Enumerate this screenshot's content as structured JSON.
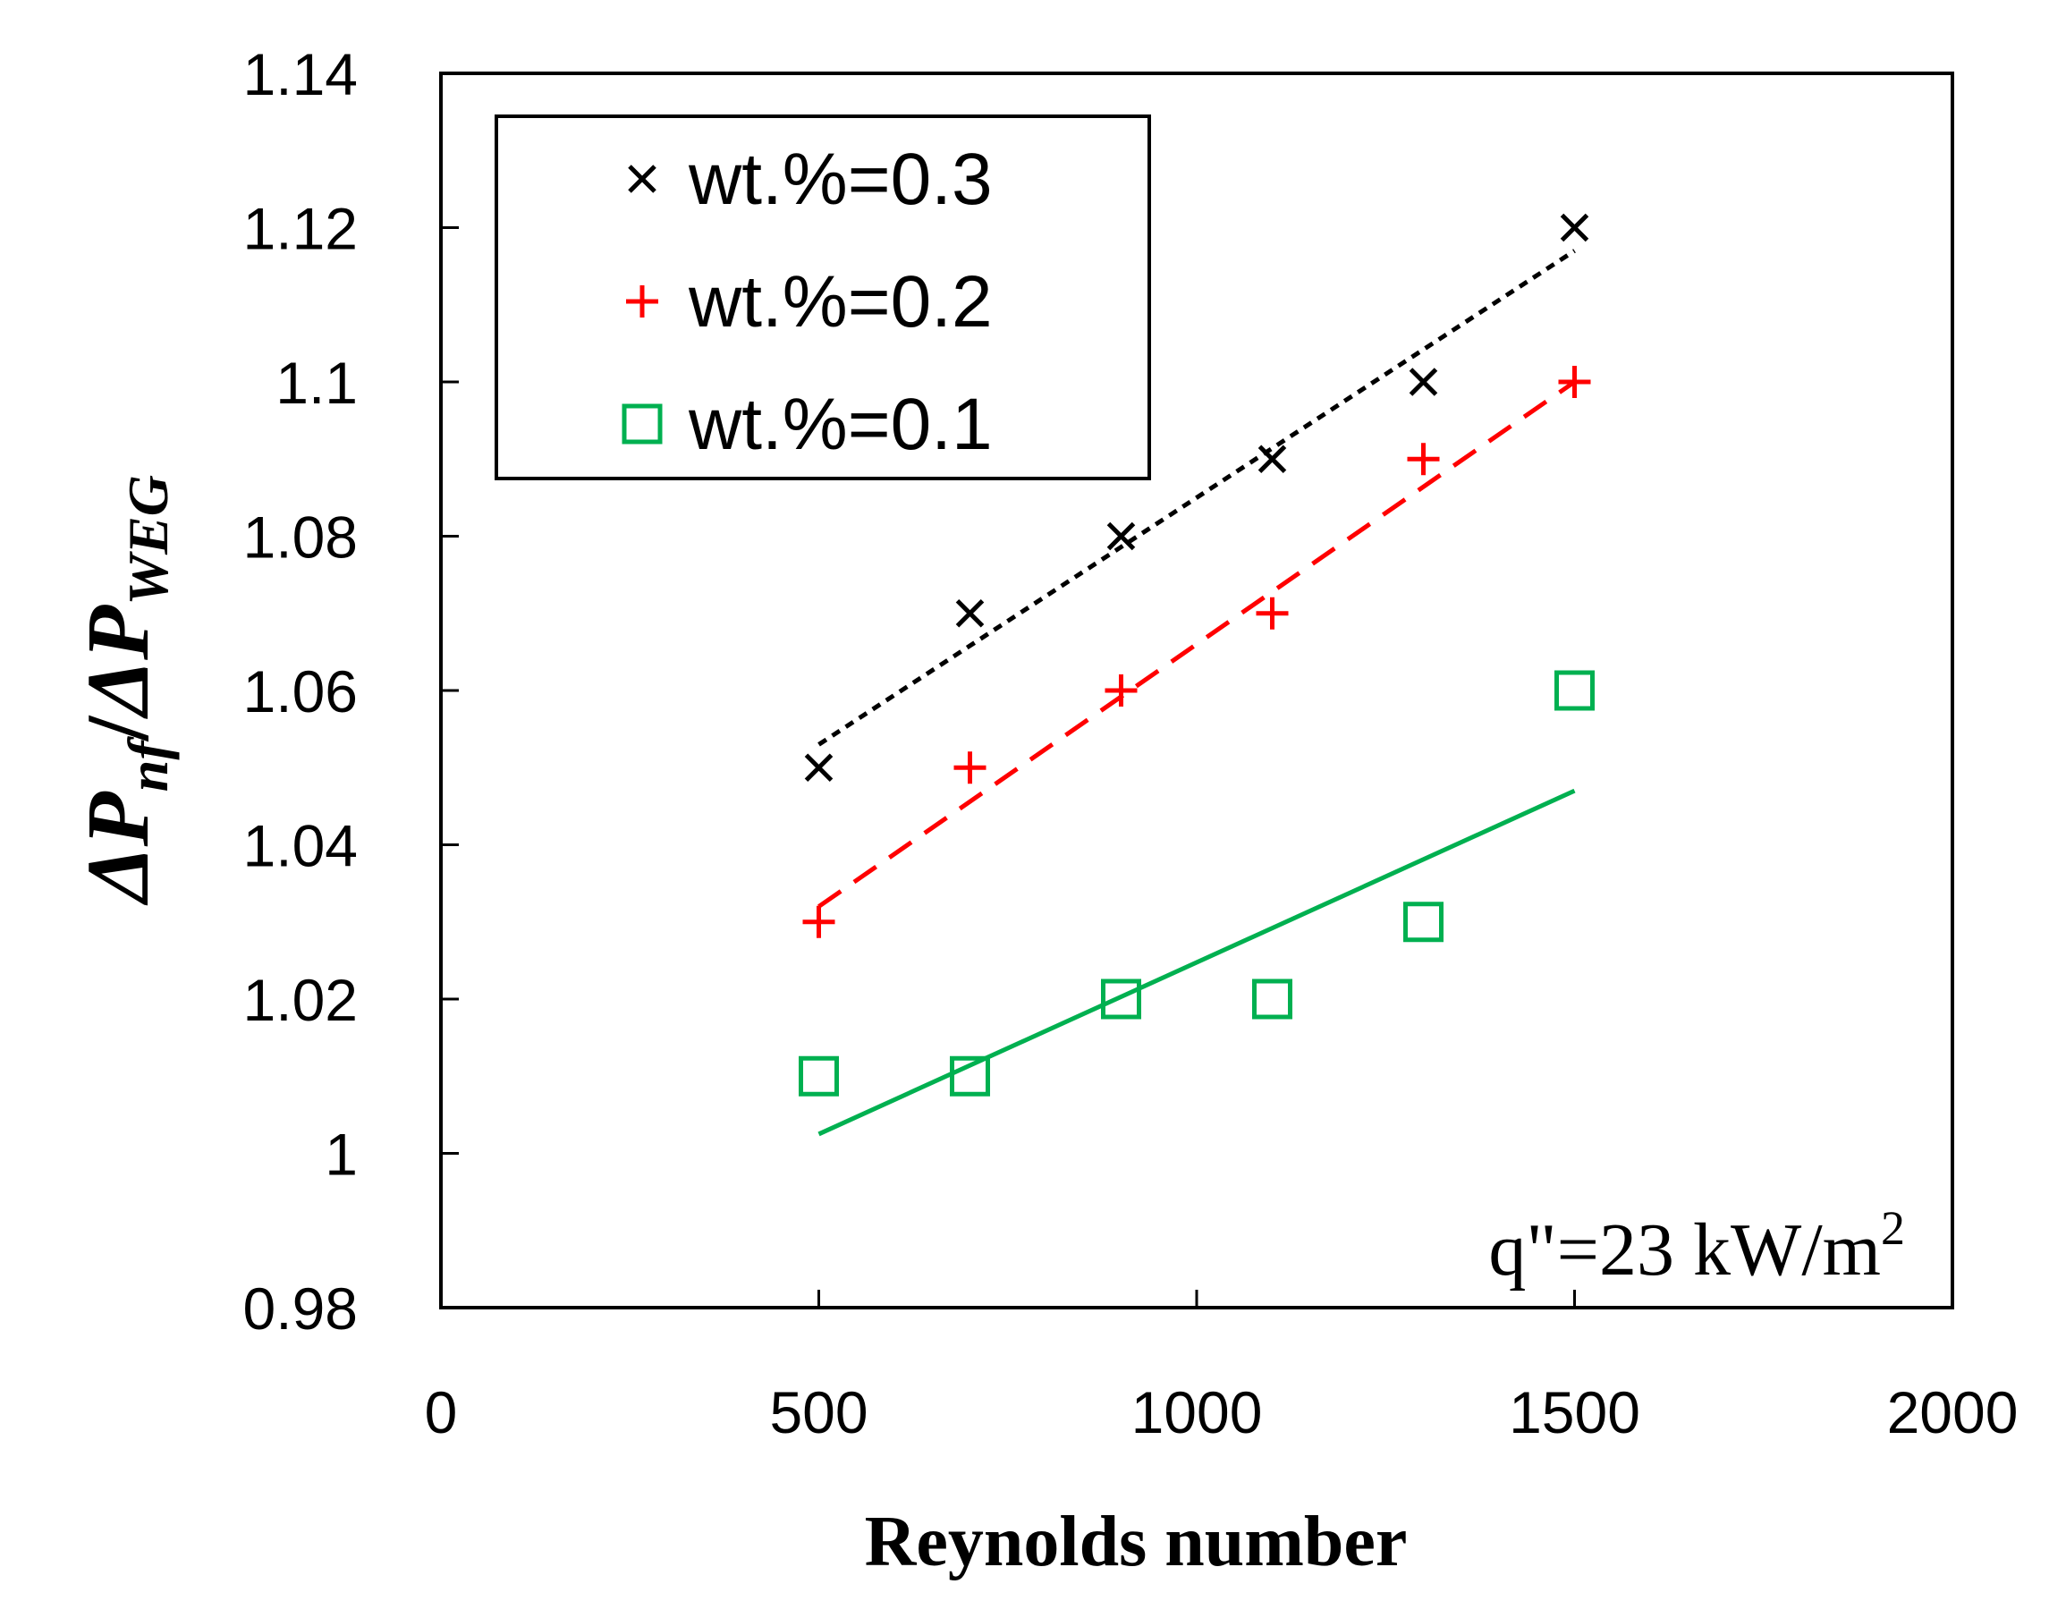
{
  "chart_data": {
    "type": "scatter",
    "title": "",
    "xlabel": "Reynolds number",
    "ylabel": {
      "prefix1": "ΔP",
      "sub1": "nf",
      "slash": "/",
      "prefix2": "ΔP",
      "sub2": "WEG"
    },
    "xlim": [
      0,
      2000
    ],
    "ylim": [
      0.98,
      1.14
    ],
    "x_ticks": [
      {
        "value": 0,
        "label": "0"
      },
      {
        "value": 500,
        "label": "500"
      },
      {
        "value": 1000,
        "label": "1000"
      },
      {
        "value": 1500,
        "label": "1500"
      },
      {
        "value": 2000,
        "label": "2000"
      }
    ],
    "y_ticks": [
      {
        "value": 0.98,
        "label": "0.98"
      },
      {
        "value": 1.0,
        "label": "1"
      },
      {
        "value": 1.02,
        "label": "1.02"
      },
      {
        "value": 1.04,
        "label": "1.04"
      },
      {
        "value": 1.06,
        "label": "1.06"
      },
      {
        "value": 1.08,
        "label": "1.08"
      },
      {
        "value": 1.1,
        "label": "1.1"
      },
      {
        "value": 1.12,
        "label": "1.12"
      },
      {
        "value": 1.14,
        "label": "1.14"
      }
    ],
    "legend_position": "top-left",
    "annotation": {
      "main": "q\"=23 kW/m",
      "sup": "2"
    },
    "series": [
      {
        "name": "wt.%=0.3",
        "marker": "x",
        "color": "#000000",
        "line_style": "dotted",
        "x": [
          500,
          700,
          900,
          1100,
          1300,
          1500
        ],
        "y": [
          1.05,
          1.07,
          1.08,
          1.09,
          1.1,
          1.12
        ],
        "trend": {
          "x": [
            500,
            1500
          ],
          "y": [
            1.053,
            1.117
          ]
        }
      },
      {
        "name": "wt.%=0.2",
        "marker": "+",
        "color": "#ff0000",
        "line_style": "dashed",
        "x": [
          500,
          700,
          900,
          1100,
          1300,
          1500
        ],
        "y": [
          1.03,
          1.05,
          1.06,
          1.07,
          1.09,
          1.1
        ],
        "trend": {
          "x": [
            500,
            1500
          ],
          "y": [
            1.032,
            1.1
          ]
        }
      },
      {
        "name": "wt.%=0.1",
        "marker": "square",
        "color": "#00b050",
        "line_style": "solid",
        "x": [
          500,
          700,
          900,
          1100,
          1300,
          1500
        ],
        "y": [
          1.01,
          1.01,
          1.02,
          1.02,
          1.03,
          1.06
        ],
        "trend": {
          "x": [
            500,
            1500
          ],
          "y": [
            1.0025,
            1.047
          ]
        }
      }
    ]
  }
}
